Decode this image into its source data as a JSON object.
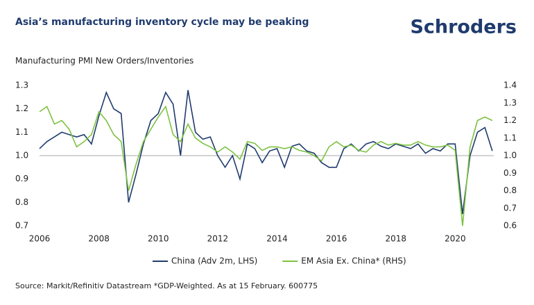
{
  "chart_data": {
    "type": "line",
    "title": "Asia’s manufacturing inventory cycle may be peaking",
    "logo": "Schroders",
    "subtitle": "Manufacturing PMI New Orders/Inventories",
    "source": "Source: Markit/Refinitiv Datastream *GDP-Weighted. As at 15 February. 600775",
    "x": [
      2006,
      2006.25,
      2006.5,
      2006.75,
      2007,
      2007.25,
      2007.5,
      2007.75,
      2008,
      2008.25,
      2008.5,
      2008.75,
      2009,
      2009.25,
      2009.5,
      2009.75,
      2010,
      2010.25,
      2010.5,
      2010.75,
      2011,
      2011.25,
      2011.5,
      2011.75,
      2012,
      2012.25,
      2012.5,
      2012.75,
      2013,
      2013.25,
      2013.5,
      2013.75,
      2014,
      2014.25,
      2014.5,
      2014.75,
      2015,
      2015.25,
      2015.5,
      2015.75,
      2016,
      2016.25,
      2016.5,
      2016.75,
      2017,
      2017.25,
      2017.5,
      2017.75,
      2018,
      2018.25,
      2018.5,
      2018.75,
      2019,
      2019.25,
      2019.5,
      2019.75,
      2020,
      2020.25,
      2020.5,
      2020.75,
      2021,
      2021.25
    ],
    "series": [
      {
        "name": "China (Adv 2m, LHS)",
        "color": "#1f3b6e",
        "values": [
          1.03,
          1.06,
          1.08,
          1.1,
          1.09,
          1.08,
          1.09,
          1.05,
          1.17,
          1.27,
          1.2,
          1.18,
          0.8,
          0.92,
          1.05,
          1.15,
          1.18,
          1.27,
          1.22,
          1.0,
          1.28,
          1.1,
          1.07,
          1.08,
          1.0,
          0.95,
          1.0,
          0.9,
          1.05,
          1.03,
          0.97,
          1.02,
          1.03,
          0.95,
          1.04,
          1.05,
          1.02,
          1.01,
          0.97,
          0.95,
          0.95,
          1.03,
          1.05,
          1.02,
          1.05,
          1.06,
          1.04,
          1.03,
          1.05,
          1.04,
          1.03,
          1.05,
          1.01,
          1.03,
          1.02,
          1.05,
          1.05,
          0.75,
          1.0,
          1.1,
          1.12,
          1.02
        ]
      },
      {
        "name": "EM Asia Ex. China* (RHS)",
        "color": "#7dc242",
        "axis": "y2",
        "values": [
          1.25,
          1.28,
          1.18,
          1.2,
          1.15,
          1.05,
          1.08,
          1.12,
          1.25,
          1.2,
          1.12,
          1.08,
          0.8,
          0.95,
          1.08,
          1.15,
          1.22,
          1.28,
          1.12,
          1.08,
          1.18,
          1.1,
          1.07,
          1.05,
          1.02,
          1.05,
          1.02,
          0.98,
          1.08,
          1.07,
          1.03,
          1.05,
          1.05,
          1.04,
          1.05,
          1.03,
          1.02,
          1.0,
          0.97,
          1.05,
          1.08,
          1.05,
          1.06,
          1.03,
          1.02,
          1.06,
          1.08,
          1.06,
          1.07,
          1.06,
          1.06,
          1.08,
          1.06,
          1.05,
          1.05,
          1.06,
          1.03,
          0.6,
          1.05,
          1.2,
          1.22,
          1.2
        ]
      }
    ],
    "xlim": [
      2006,
      2021.3
    ],
    "xticks": [
      2006,
      2008,
      2010,
      2012,
      2014,
      2016,
      2018,
      2020
    ],
    "ylim": [
      0.7,
      1.3
    ],
    "yticks": [
      0.7,
      0.8,
      0.9,
      {
        "value": 1,
        "label": "1.0"
      },
      1.1,
      1.2,
      1.3
    ],
    "y2lim": [
      0.6,
      1.4
    ],
    "y2ticks": [
      0.6,
      0.7,
      0.8,
      0.9,
      {
        "value": 1,
        "label": "1.0"
      },
      1.1,
      1.2,
      1.3,
      1.4
    ],
    "hline": 1,
    "grid": false
  }
}
